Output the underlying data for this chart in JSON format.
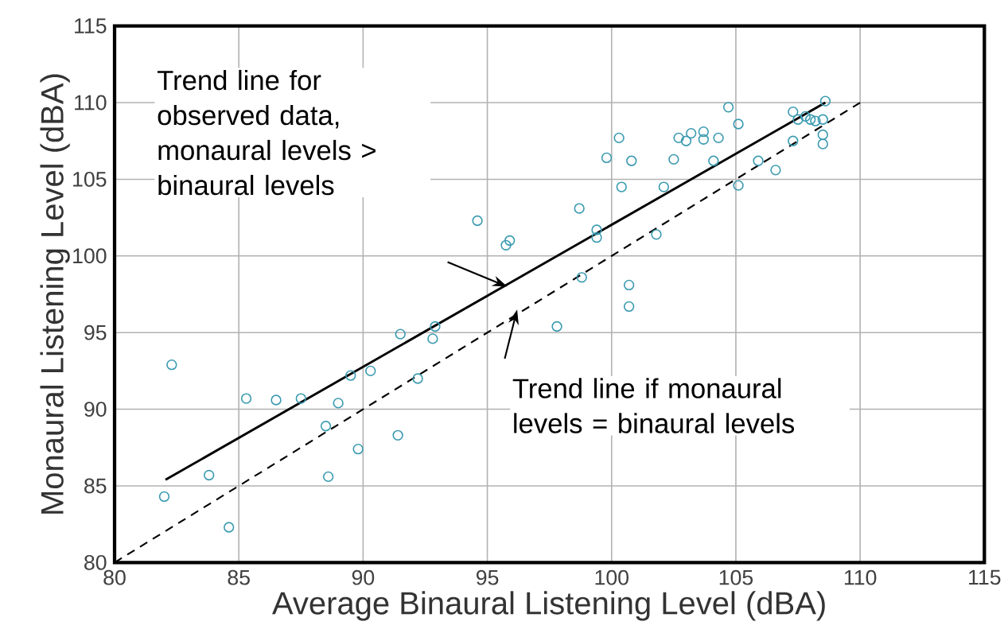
{
  "chart_data": {
    "type": "scatter",
    "xlabel": "Average Binaural Listening Level (dBA)",
    "ylabel": "Monaural Listening Level (dBA)",
    "xlim": [
      80,
      115
    ],
    "ylim": [
      80,
      115
    ],
    "xticks": [
      80,
      85,
      90,
      95,
      100,
      105,
      110,
      115
    ],
    "yticks": [
      80,
      85,
      90,
      95,
      100,
      105,
      110,
      115
    ],
    "grid": true,
    "marker": "circle",
    "series": [
      {
        "color": "#3a9ab0",
        "x": [
          82.3,
          82.0,
          83.8,
          84.6,
          85.3,
          86.5,
          87.5,
          89.0,
          88.5,
          88.6,
          89.5,
          90.3,
          89.8,
          91.4,
          91.5,
          92.8,
          92.9,
          92.2,
          94.6,
          95.75,
          95.9,
          97.8,
          98.7,
          98.8,
          99.4,
          99.4,
          100.3,
          99.8,
          100.8,
          100.4,
          100.7,
          100.7,
          101.8,
          102.1,
          102.5,
          102.7,
          103.0,
          103.2,
          103.7,
          103.7,
          104.3,
          104.1,
          104.7,
          105.1,
          105.1,
          105.9,
          106.6,
          107.3,
          107.3,
          107.5,
          107.8,
          108.0,
          108.2,
          108.5,
          108.6,
          108.5,
          108.5
        ],
        "values": [
          92.9,
          84.3,
          85.7,
          82.3,
          90.7,
          90.6,
          90.7,
          90.4,
          88.9,
          85.6,
          92.2,
          92.5,
          87.4,
          88.3,
          94.9,
          94.6,
          95.4,
          92.0,
          102.3,
          100.7,
          101.0,
          95.4,
          103.1,
          98.6,
          101.7,
          101.2,
          107.7,
          106.4,
          106.2,
          104.5,
          98.1,
          96.7,
          101.4,
          104.5,
          106.3,
          107.7,
          107.5,
          108.0,
          107.6,
          108.1,
          107.7,
          106.2,
          109.7,
          108.6,
          104.6,
          106.2,
          105.6,
          107.5,
          109.4,
          108.9,
          109.1,
          108.9,
          108.8,
          108.9,
          110.1,
          107.9,
          107.3
        ]
      },
      {
        "type": "line",
        "color": "#000000",
        "marker": "none",
        "line_style": "solid",
        "x": [
          82.05,
          108.6
        ],
        "values": [
          85.4,
          110.0
        ]
      },
      {
        "type": "line",
        "color": "#000000",
        "marker": "none",
        "line_style": "dashed",
        "x": [
          80,
          110
        ],
        "values": [
          80,
          110
        ]
      }
    ],
    "annotations": [
      "Trend line for observed data, monaural levels > binaural levels",
      "Trend line if monaural levels = binaural levels"
    ]
  }
}
